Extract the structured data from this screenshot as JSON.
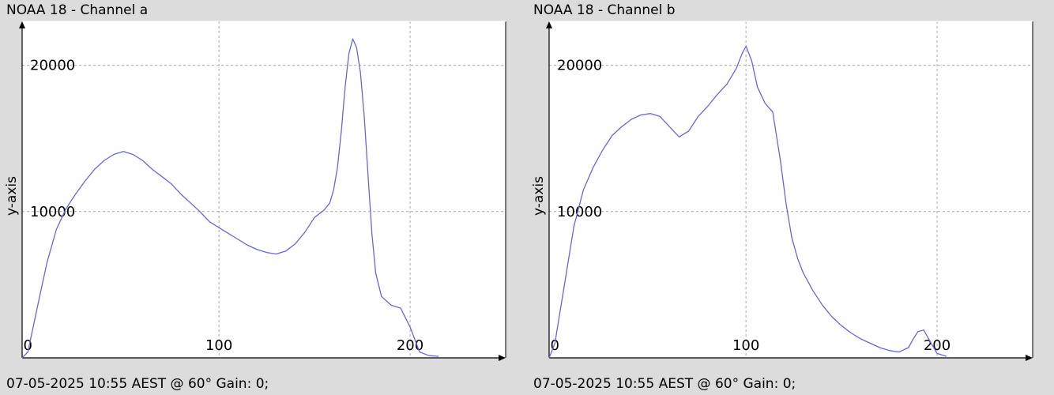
{
  "chart_data": [
    {
      "type": "line",
      "title": "NOAA 18 - Channel a",
      "footer": "07-05-2025 10:55 AEST @ 60° Gain: 0;",
      "xlabel": "",
      "ylabel": "y-axis",
      "xlim": [
        -3,
        250
      ],
      "ylim": [
        0,
        23000
      ],
      "xticks": [
        "0",
        "100",
        "200"
      ],
      "xtick_values": [
        0,
        100,
        200
      ],
      "yticks": [
        "10000",
        "20000"
      ],
      "ytick_values": [
        10000,
        20000
      ],
      "grid": true,
      "color": "#6666dd",
      "series": [
        {
          "x": [
            -3,
            0,
            5,
            10,
            15,
            20,
            25,
            30,
            35,
            40,
            45,
            50,
            55,
            60,
            65,
            70,
            75,
            80,
            85,
            90,
            95,
            100,
            105,
            110,
            115,
            120,
            125,
            130,
            135,
            140,
            145,
            150,
            155,
            158,
            160,
            162,
            164,
            166,
            168,
            170,
            172,
            174,
            176,
            178,
            180,
            182,
            185,
            190,
            195,
            200,
            205,
            210,
            215
          ],
          "y": [
            0,
            400,
            3500,
            6500,
            8800,
            10200,
            11200,
            12100,
            12900,
            13500,
            13900,
            14100,
            13900,
            13500,
            12900,
            12400,
            11900,
            11200,
            10600,
            10000,
            9300,
            8900,
            8500,
            8100,
            7700,
            7400,
            7200,
            7100,
            7300,
            7800,
            8600,
            9600,
            10100,
            10600,
            11500,
            13000,
            15500,
            18500,
            20800,
            21800,
            21200,
            19500,
            16500,
            12500,
            8500,
            5800,
            4200,
            3600,
            3400,
            2100,
            400,
            150,
            100
          ]
        }
      ]
    },
    {
      "type": "line",
      "title": "NOAA 18 - Channel b",
      "footer": "07-05-2025 10:55 AEST @ 60° Gain: 0;",
      "xlabel": "",
      "ylabel": "y-axis",
      "xlim": [
        -3,
        250
      ],
      "ylim": [
        0,
        23000
      ],
      "xticks": [
        "0",
        "100",
        "200"
      ],
      "xtick_values": [
        0,
        100,
        200
      ],
      "yticks": [
        "10000",
        "20000"
      ],
      "ytick_values": [
        10000,
        20000
      ],
      "grid": true,
      "color": "#6666dd",
      "series": [
        {
          "x": [
            -3,
            0,
            5,
            10,
            15,
            20,
            25,
            30,
            35,
            40,
            45,
            50,
            55,
            60,
            65,
            70,
            75,
            80,
            85,
            90,
            95,
            98,
            100,
            103,
            106,
            110,
            114,
            118,
            121,
            124,
            127,
            130,
            135,
            140,
            145,
            150,
            155,
            160,
            165,
            170,
            175,
            180,
            185,
            188,
            190,
            193,
            196,
            200,
            205
          ],
          "y": [
            0,
            1000,
            5000,
            9000,
            11500,
            13000,
            14200,
            15200,
            15800,
            16300,
            16600,
            16700,
            16500,
            15800,
            15100,
            15500,
            16500,
            17200,
            18000,
            18700,
            19800,
            20800,
            21300,
            20300,
            18500,
            17400,
            16800,
            13500,
            10500,
            8200,
            6800,
            5800,
            4600,
            3600,
            2800,
            2200,
            1700,
            1300,
            1000,
            700,
            500,
            400,
            700,
            1400,
            1800,
            1900,
            1200,
            300,
            100
          ]
        }
      ]
    }
  ]
}
